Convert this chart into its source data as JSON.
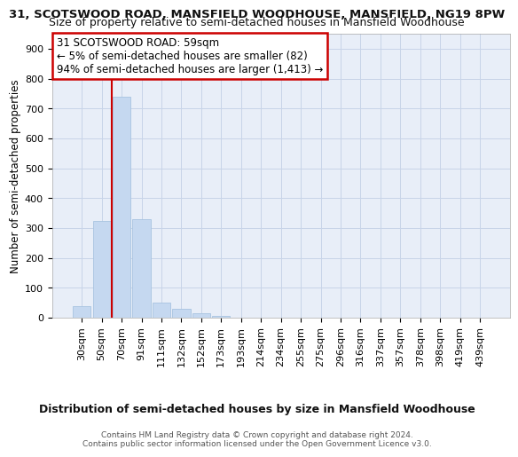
{
  "title1": "31, SCOTSWOOD ROAD, MANSFIELD WOODHOUSE, MANSFIELD, NG19 8PW",
  "title2": "Size of property relative to semi-detached houses in Mansfield Woodhouse",
  "xlabel": "Distribution of semi-detached houses by size in Mansfield Woodhouse",
  "ylabel": "Number of semi-detached properties",
  "footer": "Contains HM Land Registry data © Crown copyright and database right 2024.\nContains public sector information licensed under the Open Government Licence v3.0.",
  "categories": [
    "30sqm",
    "50sqm",
    "70sqm",
    "91sqm",
    "111sqm",
    "132sqm",
    "152sqm",
    "173sqm",
    "193sqm",
    "214sqm",
    "234sqm",
    "255sqm",
    "275sqm",
    "296sqm",
    "316sqm",
    "337sqm",
    "357sqm",
    "378sqm",
    "398sqm",
    "419sqm",
    "439sqm"
  ],
  "values": [
    40,
    325,
    740,
    330,
    50,
    30,
    15,
    5,
    0,
    0,
    0,
    0,
    0,
    0,
    0,
    0,
    0,
    0,
    0,
    0,
    0
  ],
  "bar_color": "#c5d8f0",
  "bar_edge_color": "#a8c4e0",
  "reference_line_x": 1.5,
  "reference_line_color": "#cc0000",
  "annotation_text": "31 SCOTSWOOD ROAD: 59sqm\n← 5% of semi-detached houses are smaller (82)\n94% of semi-detached houses are larger (1,413) →",
  "annotation_box_color": "#ffffff",
  "annotation_box_edge_color": "#cc0000",
  "ylim": [
    0,
    950
  ],
  "yticks": [
    0,
    100,
    200,
    300,
    400,
    500,
    600,
    700,
    800,
    900
  ],
  "bg_color": "#ffffff",
  "plot_bg_color": "#e8eef8",
  "grid_color": "#c8d4e8",
  "title1_fontsize": 9.5,
  "title2_fontsize": 9,
  "xlabel_fontsize": 9,
  "ylabel_fontsize": 8.5,
  "tick_fontsize": 8,
  "annotation_fontsize": 8.5,
  "footer_fontsize": 6.5
}
